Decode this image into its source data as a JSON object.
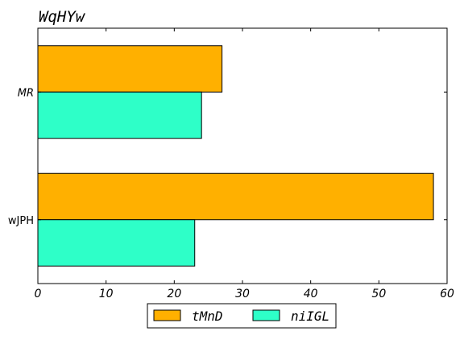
{
  "chart_data": {
    "type": "bar",
    "orientation": "horizontal",
    "title": "WqHYw",
    "xlabel": "",
    "ylabel": "",
    "categories": [
      "MR",
      "wJPH"
    ],
    "series": [
      {
        "name": "tMnD",
        "values": [
          27,
          58
        ],
        "color": "#ffb000"
      },
      {
        "name": "niIGL",
        "values": [
          24,
          23
        ],
        "color": "#2effc8"
      }
    ],
    "xlim": [
      0,
      60
    ],
    "xticks": [
      0,
      10,
      20,
      30,
      40,
      50,
      60
    ],
    "grid": false,
    "legend_position": "bottom-center"
  }
}
